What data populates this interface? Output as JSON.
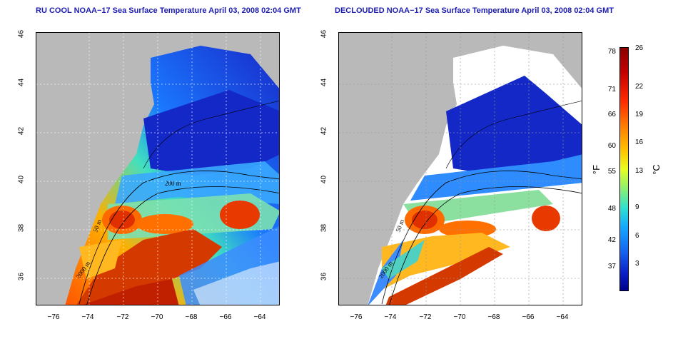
{
  "panels": [
    {
      "title": "RU COOL NOAA−17 Sea Surface Temperature April 03, 2008 02:04 GMT"
    },
    {
      "title": "DECLOUDED NOAA−17 Sea Surface Temperature April 03, 2008 02:04 GMT"
    }
  ],
  "x_ticks": [
    "−76",
    "−74",
    "−72",
    "−70",
    "−68",
    "−66",
    "−64"
  ],
  "y_ticks": [
    "46",
    "44",
    "42",
    "40",
    "38",
    "36"
  ],
  "contour_labels": {
    "l200": "200 m",
    "l2000": "2000 m",
    "l50": "50 m"
  },
  "colorbar": {
    "f_ticks": [
      "78",
      "71",
      "66",
      "60",
      "55",
      "48",
      "42",
      "37"
    ],
    "c_ticks": [
      "26",
      "22",
      "19",
      "16",
      "13",
      "9",
      "6",
      "3"
    ],
    "f_unit": "°F",
    "c_unit": "°C"
  },
  "colors": {
    "land": "#b9b9b9",
    "title": "#1c1cb0"
  }
}
